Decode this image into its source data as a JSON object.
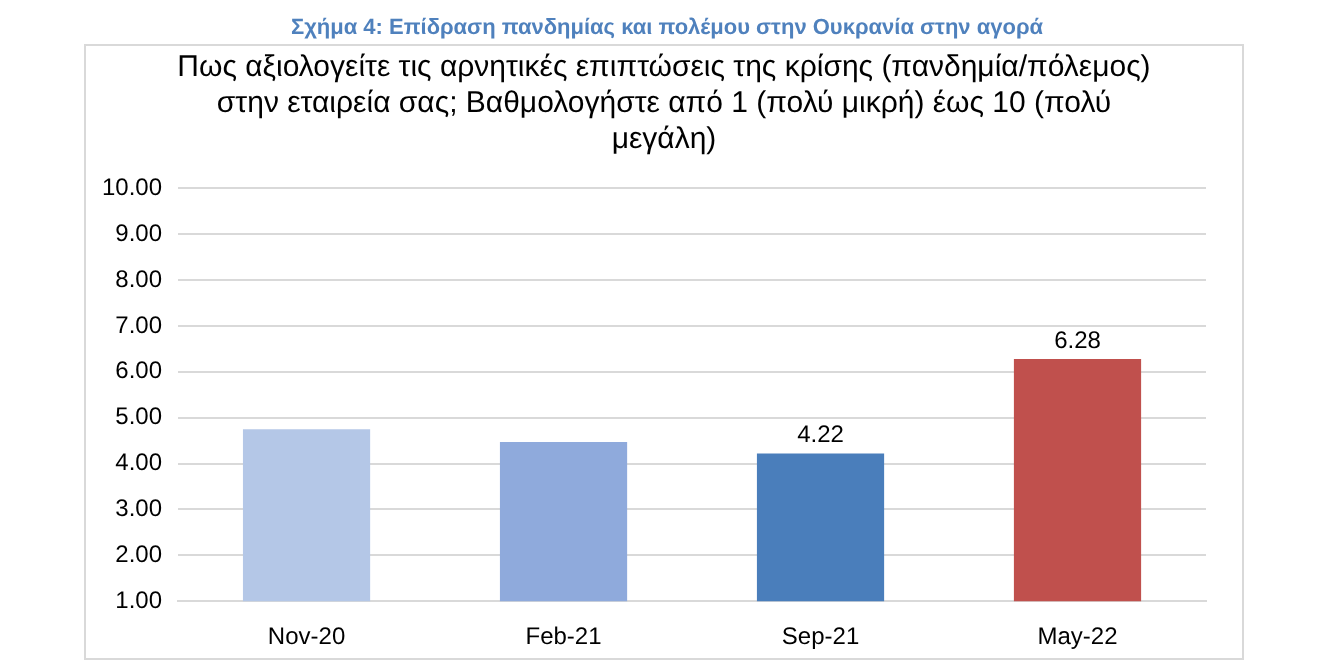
{
  "chart_data": {
    "type": "bar",
    "title": "Σχήμα 4: Επίδραση πανδημίας και πολέμου στην Ουκρανία στην αγορά",
    "subtitle": "Πως αξιολογείτε τις αρνητικές επιπτώσεις της κρίσης (πανδημία/πόλεμος) στην εταιρεία σας; Βαθμολογήστε από 1 (πολύ μικρή) έως 10 (πολύ μεγάλη)",
    "categories": [
      "Nov-20",
      "Feb-21",
      "Sep-21",
      "May-22"
    ],
    "values": [
      4.75,
      4.47,
      4.22,
      6.28
    ],
    "colors": [
      "#b4c7e7",
      "#8faadc",
      "#4a7ebb",
      "#c0504d"
    ],
    "value_labels": [
      null,
      null,
      "4.22",
      "6.28"
    ],
    "ylim": [
      1,
      10
    ],
    "yticks": [
      {
        "value": 1,
        "label": "1.00"
      },
      {
        "value": 2,
        "label": "2.00"
      },
      {
        "value": 3,
        "label": "3.00"
      },
      {
        "value": 4,
        "label": "4.00"
      },
      {
        "value": 5,
        "label": "5.00"
      },
      {
        "value": 6,
        "label": "6.00"
      },
      {
        "value": 7,
        "label": "7.00"
      },
      {
        "value": 8,
        "label": "8.00"
      },
      {
        "value": 9,
        "label": "9.00"
      },
      {
        "value": 10,
        "label": "10.00"
      }
    ],
    "grid": "y",
    "legend": false
  }
}
